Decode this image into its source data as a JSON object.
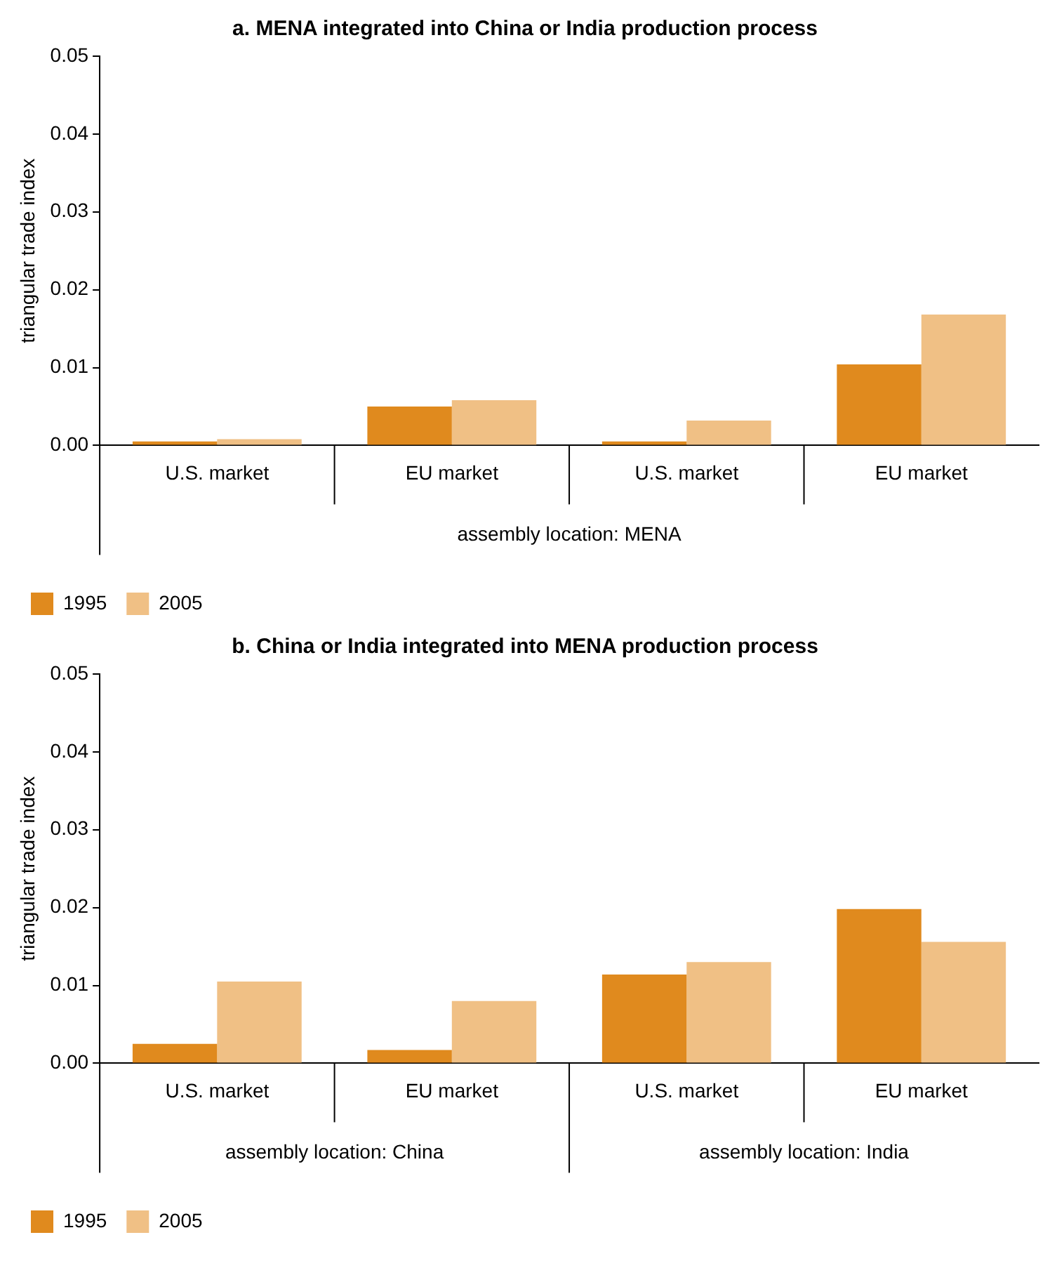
{
  "chart_data": [
    {
      "type": "bar",
      "title": "a. MENA integrated into China or India production process",
      "ylabel": "triangular trade index",
      "categories": [
        "U.S. market",
        "EU market",
        "U.S. market",
        "EU market"
      ],
      "annotations": [
        "assembly location: MENA"
      ],
      "series": [
        {
          "name": "1995",
          "color": "#e08a1e",
          "values": [
            0.0005,
            0.005,
            0.0005,
            0.0104
          ]
        },
        {
          "name": "2005",
          "color": "#f0c085",
          "values": [
            0.0008,
            0.0058,
            0.0032,
            0.0168
          ]
        }
      ],
      "ylim": [
        0,
        0.05
      ],
      "yticks": [
        {
          "value": 0,
          "label": "0.00"
        },
        {
          "value": 0.01,
          "label": "0.01"
        },
        {
          "value": 0.02,
          "label": "0.02"
        },
        {
          "value": 0.03,
          "label": "0.03"
        },
        {
          "value": 0.04,
          "label": "0.04"
        },
        {
          "value": 0.05,
          "label": "0.05"
        }
      ],
      "grid": false,
      "legend": "bottom left"
    },
    {
      "type": "bar",
      "title": "b. China or India integrated into MENA production process",
      "ylabel": "triangular trade index",
      "categories": [
        "U.S. market",
        "EU market",
        "U.S. market",
        "EU market"
      ],
      "annotations": [
        "assembly location: China",
        "assembly location: India"
      ],
      "series": [
        {
          "name": "1995",
          "color": "#e08a1e",
          "values": [
            0.0025,
            0.0017,
            0.0114,
            0.0198
          ]
        },
        {
          "name": "2005",
          "color": "#f0c085",
          "values": [
            0.0105,
            0.008,
            0.013,
            0.0156
          ]
        }
      ],
      "ylim": [
        0,
        0.05
      ],
      "yticks": [
        {
          "value": 0,
          "label": "0.00"
        },
        {
          "value": 0.01,
          "label": "0.01"
        },
        {
          "value": 0.02,
          "label": "0.02"
        },
        {
          "value": 0.03,
          "label": "0.03"
        },
        {
          "value": 0.04,
          "label": "0.04"
        },
        {
          "value": 0.05,
          "label": "0.05"
        }
      ],
      "grid": false,
      "legend": "bottom left"
    }
  ]
}
